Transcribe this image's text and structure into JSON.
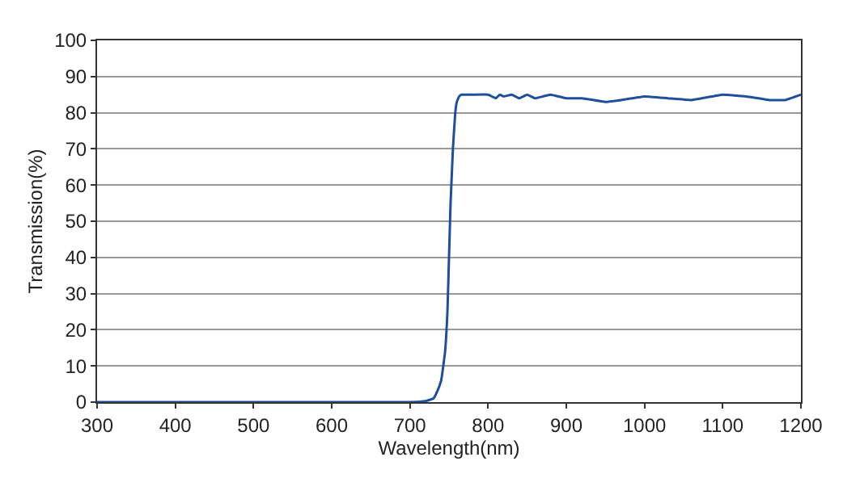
{
  "chart_data": {
    "type": "line",
    "xlabel": "Wavelength(nm)",
    "ylabel": "Transmission(%)",
    "x": [
      300,
      400,
      500,
      600,
      700,
      720,
      730,
      735,
      740,
      745,
      748,
      750,
      752,
      755,
      758,
      760,
      763,
      766,
      770,
      780,
      800,
      810,
      815,
      820,
      830,
      840,
      850,
      860,
      870,
      880,
      900,
      920,
      950,
      970,
      1000,
      1030,
      1060,
      1100,
      1130,
      1160,
      1180,
      1200
    ],
    "series": [
      {
        "color": "#1f4e9c",
        "values": [
          0,
          0,
          0,
          0,
          0,
          0.3,
          1,
          3,
          6,
          14,
          25,
          40,
          55,
          70,
          80,
          83,
          84.5,
          85,
          85,
          85,
          85,
          84,
          85,
          84.5,
          85,
          84,
          85,
          84,
          84.5,
          85,
          84,
          84,
          83,
          83.5,
          84.5,
          84,
          83.5,
          85,
          84.5,
          83.5,
          83.5,
          85
        ]
      }
    ],
    "xlim": [
      300,
      1200
    ],
    "xticks": [
      300,
      400,
      500,
      600,
      700,
      800,
      900,
      1000,
      1100,
      1200
    ],
    "ylim": [
      0,
      100
    ],
    "yticks": [
      0,
      10,
      20,
      30,
      40,
      50,
      60,
      70,
      80,
      90,
      100
    ],
    "grid": "y",
    "line_style": "solid",
    "marker": "none"
  }
}
